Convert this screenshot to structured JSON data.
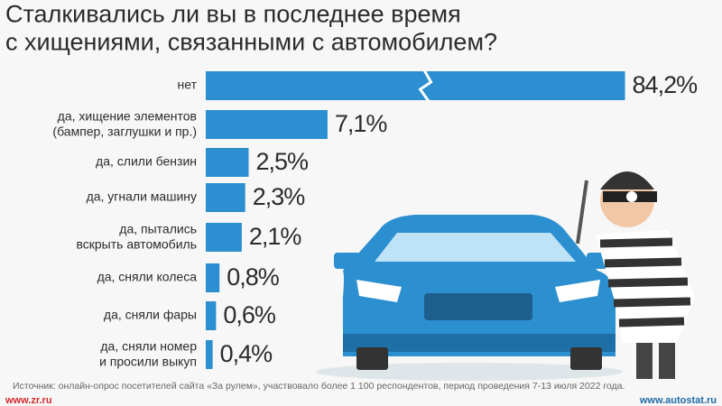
{
  "chart_data": {
    "type": "bar",
    "orientation": "horizontal",
    "title": "Сталкивались ли вы в последнее время\nс хищениями, связанными с автомобилем?",
    "categories": [
      "нет",
      "да, хищение элементов\n(бампер, заглушки и пр.)",
      "да, слили бензин",
      "да, угнали машину",
      "да, пытались\nвскрыть автомобиль",
      "да, сняли колеса",
      "да, сняли фары",
      "да, сняли номер\nи просили выкуп"
    ],
    "values": [
      84.2,
      7.1,
      2.5,
      2.3,
      2.1,
      0.8,
      0.6,
      0.4
    ],
    "value_labels": [
      "84,2%",
      "7,1%",
      "2,5%",
      "2,3%",
      "2,1%",
      "0,8%",
      "0,6%",
      "0,4%"
    ],
    "color": "#2b8fd1",
    "source": "Источник: онлайн-опрос посетителей сайта «За рулем», участвовало более 1 100 респондентов, период проведения 7-13 июля 2022 года.",
    "credits": [
      "www.zr.ru",
      "www.autostat.ru"
    ]
  }
}
